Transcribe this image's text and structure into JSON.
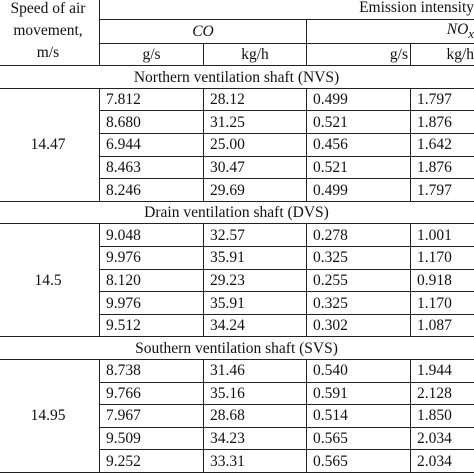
{
  "header": {
    "speed_label_line1": "Speed of air",
    "speed_label_line2": "movement,",
    "speed_label_line3": "m/s",
    "emission_label": "Emission intensity",
    "co_label": "CO",
    "nox_label": "NO",
    "nox_sub": "x",
    "units": [
      "g/s",
      "kg/h",
      "g/s",
      "kg/h"
    ]
  },
  "sections": [
    {
      "title": "Northern ventilation shaft (NVS)",
      "speed": "14.47",
      "rows": [
        [
          "7.812",
          "28.12",
          "0.499",
          "1.797"
        ],
        [
          "8.680",
          "31.25",
          "0.521",
          "1.876"
        ],
        [
          "6.944",
          "25.00",
          "0.456",
          "1.642"
        ],
        [
          "8.463",
          "30.47",
          "0.521",
          "1.876"
        ],
        [
          "8.246",
          "29.69",
          "0.499",
          "1.797"
        ]
      ]
    },
    {
      "title": "Drain ventilation shaft (DVS)",
      "speed": "14.5",
      "rows": [
        [
          "9.048",
          "32.57",
          "0.278",
          "1.001"
        ],
        [
          "9.976",
          "35.91",
          "0.325",
          "1.170"
        ],
        [
          "8.120",
          "29.23",
          "0.255",
          "0.918"
        ],
        [
          "9.976",
          "35.91",
          "0.325",
          "1.170"
        ],
        [
          "9.512",
          "34.24",
          "0.302",
          "1.087"
        ]
      ]
    },
    {
      "title": "Southern ventilation shaft (SVS)",
      "speed": "14.95",
      "rows": [
        [
          "8.738",
          "31.46",
          "0.540",
          "1.944"
        ],
        [
          "9.766",
          "35.16",
          "0.591",
          "2.128"
        ],
        [
          "7.967",
          "28.68",
          "0.514",
          "1.850"
        ],
        [
          "9.509",
          "34.23",
          "0.565",
          "2.034"
        ],
        [
          "9.252",
          "33.31",
          "0.565",
          "2.034"
        ]
      ]
    }
  ]
}
